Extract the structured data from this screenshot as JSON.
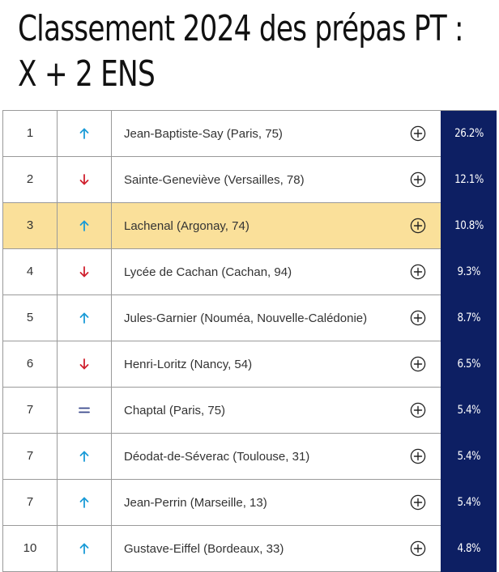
{
  "header": {
    "title_line1": "Classement 2024 des prépas PT :",
    "title_line2": "X + 2 ENS"
  },
  "colors": {
    "up": "#1a9bd7",
    "down": "#d0202e",
    "equal": "#3b4a8c",
    "score_bg": "#0d1f63",
    "highlight": "#fae09a"
  },
  "rows": [
    {
      "rank": "1",
      "trend": "up",
      "name": "Jean-Baptiste-Say (Paris, 75)",
      "score": "26.2%",
      "highlight": false
    },
    {
      "rank": "2",
      "trend": "down",
      "name": "Sainte-Geneviève (Versailles, 78)",
      "score": "12.1%",
      "highlight": false
    },
    {
      "rank": "3",
      "trend": "up",
      "name": "Lachenal (Argonay, 74)",
      "score": "10.8%",
      "highlight": true
    },
    {
      "rank": "4",
      "trend": "down",
      "name": "Lycée de Cachan (Cachan, 94)",
      "score": "9.3%",
      "highlight": false
    },
    {
      "rank": "5",
      "trend": "up",
      "name": "Jules-Garnier (Nouméa, Nouvelle-Calédonie)",
      "score": "8.7%",
      "highlight": false
    },
    {
      "rank": "6",
      "trend": "down",
      "name": "Henri-Loritz (Nancy, 54)",
      "score": "6.5%",
      "highlight": false
    },
    {
      "rank": "7",
      "trend": "equal",
      "name": "Chaptal (Paris, 75)",
      "score": "5.4%",
      "highlight": false
    },
    {
      "rank": "7",
      "trend": "up",
      "name": "Déodat-de-Séverac (Toulouse, 31)",
      "score": "5.4%",
      "highlight": false
    },
    {
      "rank": "7",
      "trend": "up",
      "name": "Jean-Perrin (Marseille, 13)",
      "score": "5.4%",
      "highlight": false
    },
    {
      "rank": "10",
      "trend": "up",
      "name": "Gustave-Eiffel (Bordeaux, 33)",
      "score": "4.8%",
      "highlight": false
    }
  ]
}
